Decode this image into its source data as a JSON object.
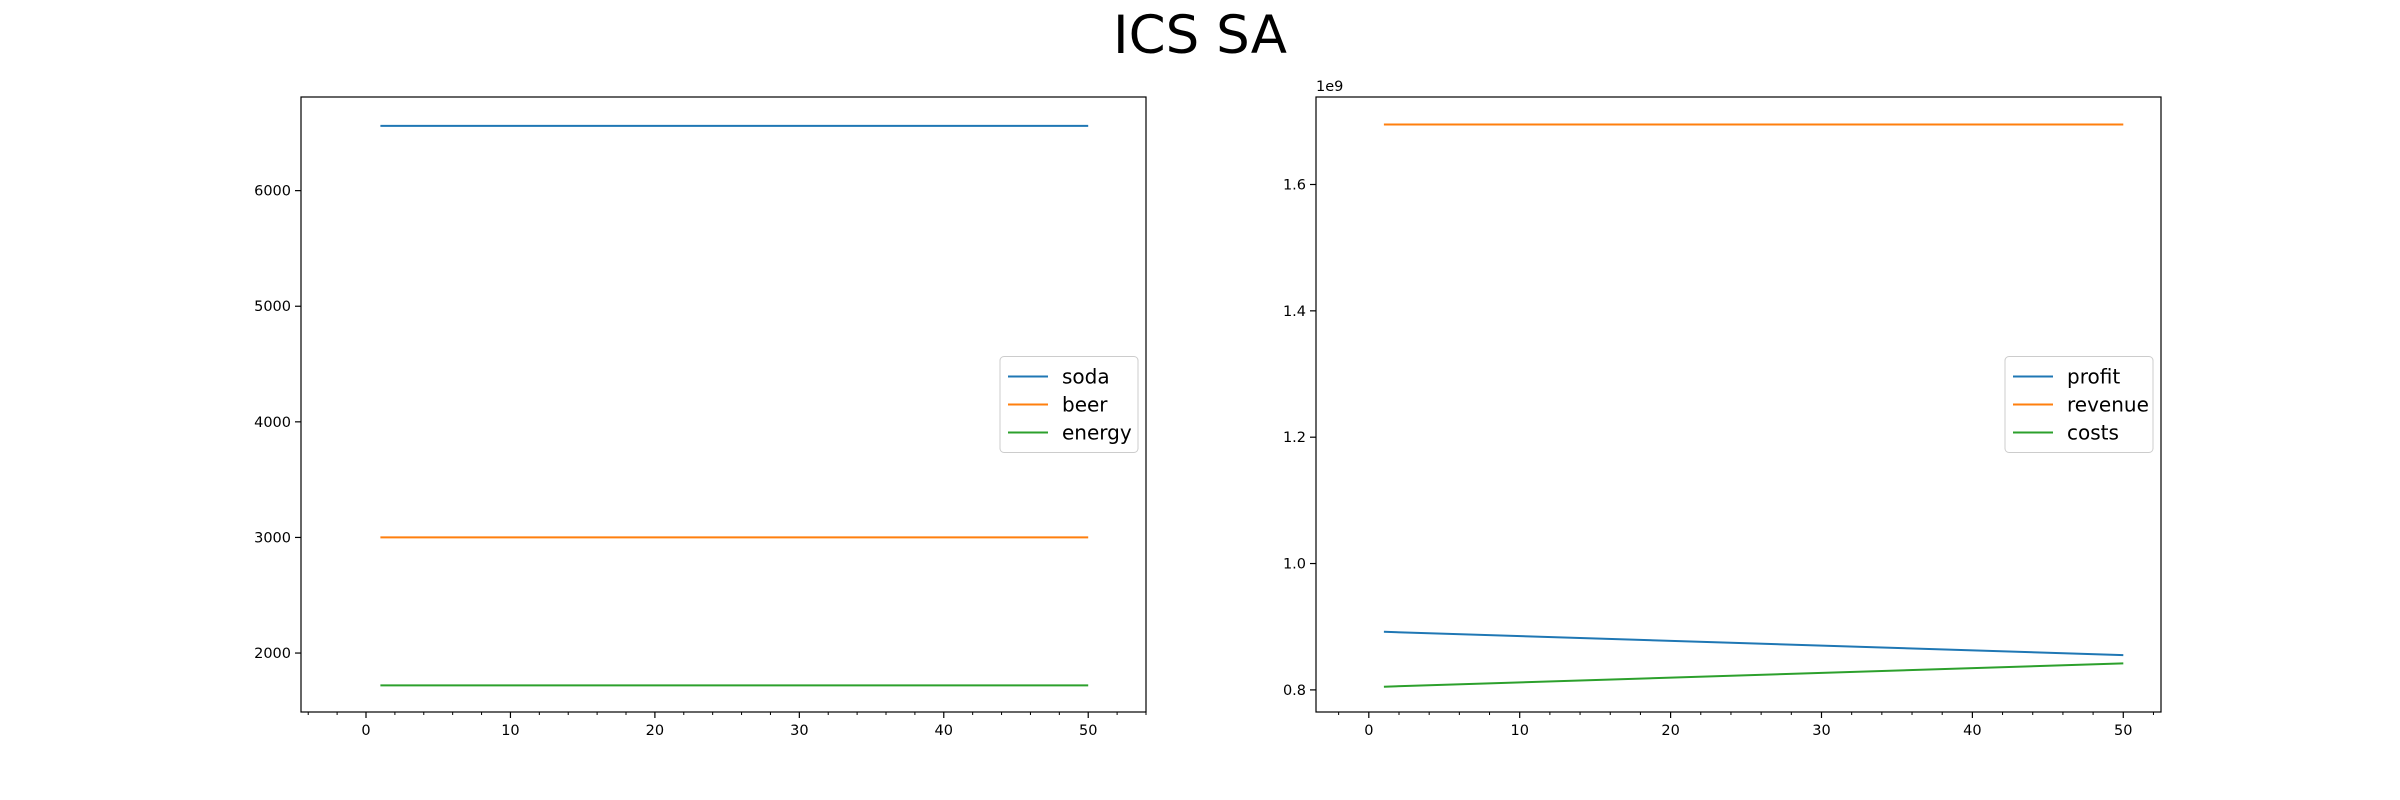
{
  "figure": {
    "suptitle": "ICS SA"
  },
  "chart_data": [
    {
      "type": "line",
      "title": "",
      "xlabel": "",
      "ylabel": "",
      "xlim": [
        -4.5,
        54
      ],
      "ylim": [
        1490,
        6810
      ],
      "xticks": [
        0,
        10,
        20,
        30,
        40,
        50
      ],
      "xtick_labels": [
        "0",
        "10",
        "20",
        "30",
        "40",
        "50"
      ],
      "yticks": [
        2000,
        3000,
        4000,
        5000,
        6000
      ],
      "ytick_labels": [
        "2000",
        "3000",
        "4000",
        "5000",
        "6000"
      ],
      "y_offset_label": "",
      "x": [
        1,
        50
      ],
      "legend": {
        "position": "center-right"
      },
      "grid": false,
      "series": [
        {
          "name": "soda",
          "color": "#1f77b4",
          "values": [
            6560,
            6560
          ]
        },
        {
          "name": "beer",
          "color": "#ff7f0e",
          "values": [
            3000,
            3000
          ]
        },
        {
          "name": "energy",
          "color": "#2ca02c",
          "values": [
            1720,
            1720
          ]
        }
      ]
    },
    {
      "type": "line",
      "title": "",
      "xlabel": "",
      "ylabel": "",
      "xlim": [
        -3.5,
        52.5
      ],
      "ylim": [
        0.765,
        1.7385
      ],
      "xticks": [
        0,
        10,
        20,
        30,
        40,
        50
      ],
      "xtick_labels": [
        "0",
        "10",
        "20",
        "30",
        "40",
        "50"
      ],
      "yticks": [
        0.8,
        1.0,
        1.2,
        1.4,
        1.6
      ],
      "ytick_labels": [
        "0.8",
        "1.0",
        "1.2",
        "1.4",
        "1.6"
      ],
      "y_offset_label": "1e9",
      "x": [
        1,
        50
      ],
      "legend": {
        "position": "center-right"
      },
      "grid": false,
      "series": [
        {
          "name": "profit",
          "color": "#1f77b4",
          "values": [
            0.892,
            0.855
          ]
        },
        {
          "name": "revenue",
          "color": "#ff7f0e",
          "values": [
            1.695,
            1.695
          ]
        },
        {
          "name": "costs",
          "color": "#2ca02c",
          "values": [
            0.805,
            0.842
          ]
        }
      ]
    }
  ]
}
